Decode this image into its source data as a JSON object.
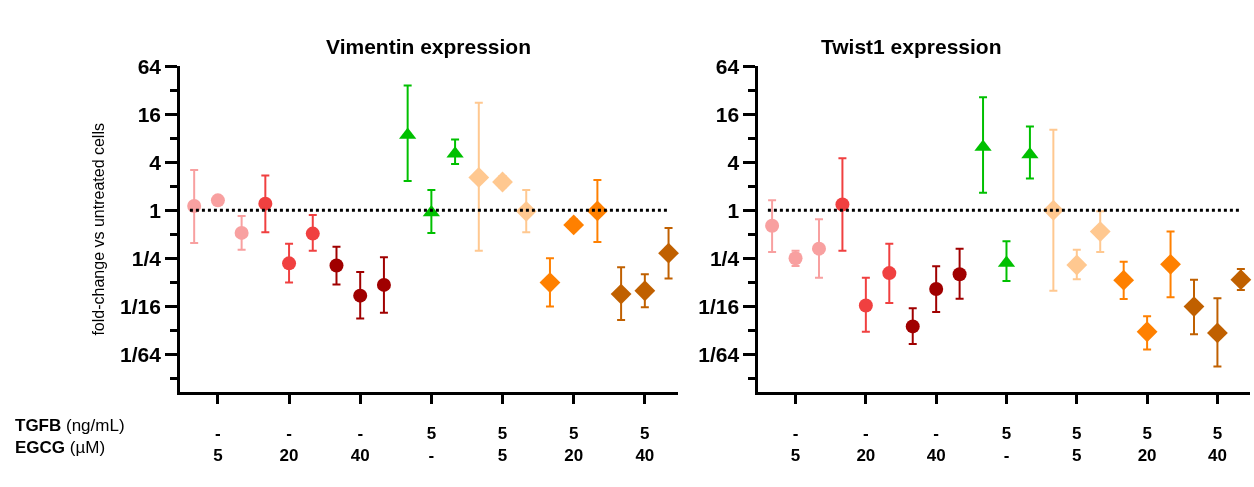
{
  "chart_data": [
    {
      "type": "scatter",
      "title": "Vimentin expression",
      "ylabel": "fold-change vs untreated cells",
      "log": "y",
      "categories": [
        null,
        "-\n5",
        null,
        null,
        "-\n20",
        null,
        null,
        "-\n40",
        null,
        null,
        "5\n-",
        null,
        null,
        "5\n5",
        null,
        null,
        "5\n20",
        null,
        null,
        "5\n40",
        null
      ],
      "ylim": [
        0.0052,
        64
      ],
      "yticks": [
        64,
        {
          "value": 32,
          "label": null
        },
        16,
        {
          "value": 8,
          "label": null
        },
        4,
        {
          "value": 2,
          "label": null
        },
        1,
        {
          "value": 0.5,
          "label": null
        },
        {
          "value": 0.25,
          "label": "1/4"
        },
        {
          "value": 0.125,
          "label": null
        },
        {
          "value": 0.0625,
          "label": "1/16"
        },
        {
          "value": 0.03125,
          "label": null
        },
        {
          "value": 0.015625,
          "label": "1/64"
        },
        {
          "value": 0.0078125,
          "label": null
        }
      ],
      "ref_lines": [
        {
          "axis": "y",
          "value": 1,
          "color": "#000000",
          "line_style": "dotted"
        }
      ],
      "annotations": [
        "TGFB (ng/mL)",
        "EGCG (µM)"
      ],
      "series": [
        {
          "color": "#f8a0a0",
          "marker": "circle",
          "values": [
            1.13,
            1.33,
            0.52,
            null,
            null,
            null,
            null,
            null,
            null,
            null,
            null,
            null,
            null,
            null,
            null,
            null,
            null,
            null,
            null,
            null,
            null
          ],
          "errors": [
            [
              0.39,
              3.2
            ],
            null,
            [
              0.32,
              0.85
            ],
            null,
            null,
            null,
            null,
            null,
            null,
            null,
            null,
            null,
            null,
            null,
            null,
            null,
            null,
            null,
            null,
            null,
            null
          ]
        },
        {
          "color": "#f04040",
          "marker": "circle",
          "values": [
            null,
            null,
            null,
            1.21,
            0.216,
            0.51,
            null,
            null,
            null,
            null,
            null,
            null,
            null,
            null,
            null,
            null,
            null,
            null,
            null,
            null,
            null
          ],
          "errors": [
            null,
            null,
            null,
            [
              0.53,
              2.73
            ],
            [
              0.124,
              0.38
            ],
            [
              0.31,
              0.87
            ],
            null,
            null,
            null,
            null,
            null,
            null,
            null,
            null,
            null,
            null,
            null,
            null,
            null,
            null,
            null
          ]
        },
        {
          "color": "#a00000",
          "marker": "circle",
          "values": [
            null,
            null,
            null,
            null,
            null,
            null,
            0.203,
            0.085,
            0.116,
            null,
            null,
            null,
            null,
            null,
            null,
            null,
            null,
            null,
            null,
            null,
            null
          ],
          "errors": [
            null,
            null,
            null,
            null,
            null,
            null,
            [
              0.117,
              0.35
            ],
            [
              0.044,
              0.168
            ],
            [
              0.052,
              0.257
            ],
            null,
            null,
            null,
            null,
            null,
            null,
            null,
            null,
            null,
            null,
            null,
            null
          ]
        },
        {
          "color": "#00c000",
          "marker": "triangle",
          "values": [
            null,
            null,
            null,
            null,
            null,
            null,
            null,
            null,
            null,
            8.8,
            0.94,
            5.1,
            null,
            null,
            null,
            null,
            null,
            null,
            null,
            null,
            null
          ],
          "errors": [
            null,
            null,
            null,
            null,
            null,
            null,
            null,
            null,
            null,
            [
              2.33,
              36.5
            ],
            [
              0.52,
              1.79
            ],
            [
              3.8,
              7.7
            ],
            null,
            null,
            null,
            null,
            null,
            null,
            null,
            null,
            null
          ]
        },
        {
          "color": "#ffc890",
          "marker": "diamond",
          "values": [
            null,
            null,
            null,
            null,
            null,
            null,
            null,
            null,
            null,
            null,
            null,
            null,
            2.58,
            2.26,
            0.97,
            null,
            null,
            null,
            null,
            null,
            null
          ],
          "errors": [
            null,
            null,
            null,
            null,
            null,
            null,
            null,
            null,
            null,
            null,
            null,
            null,
            [
              0.31,
              22.2
            ],
            [
              1.93,
              2.68
            ],
            [
              0.53,
              1.79
            ],
            null,
            null,
            null,
            null,
            null,
            null
          ]
        },
        {
          "color": "#ff8000",
          "marker": "diamond",
          "values": [
            null,
            null,
            null,
            null,
            null,
            null,
            null,
            null,
            null,
            null,
            null,
            null,
            null,
            null,
            null,
            0.124,
            0.655,
            0.98,
            null,
            null,
            null
          ],
          "errors": [
            null,
            null,
            null,
            null,
            null,
            null,
            null,
            null,
            null,
            null,
            null,
            null,
            null,
            null,
            null,
            [
              0.062,
              0.25
            ],
            [
              0.57,
              0.77
            ],
            [
              0.4,
              2.4
            ],
            null,
            null,
            null
          ]
        },
        {
          "color": "#c06000",
          "marker": "diamond",
          "values": [
            null,
            null,
            null,
            null,
            null,
            null,
            null,
            null,
            null,
            null,
            null,
            null,
            null,
            null,
            null,
            null,
            null,
            null,
            0.089,
            0.098,
            0.29
          ],
          "errors": [
            null,
            null,
            null,
            null,
            null,
            null,
            null,
            null,
            null,
            null,
            null,
            null,
            null,
            null,
            null,
            null,
            null,
            null,
            [
              0.042,
              0.193
            ],
            [
              0.061,
              0.158
            ],
            [
              0.139,
              0.6
            ]
          ]
        }
      ]
    },
    {
      "type": "scatter",
      "title": "Twist1 expression",
      "log": "y",
      "categories": [
        null,
        "-\n5",
        null,
        null,
        "-\n20",
        null,
        null,
        "-\n40",
        null,
        null,
        "5\n-",
        null,
        null,
        "5\n5",
        null,
        null,
        "5\n20",
        null,
        null,
        "5\n40",
        null
      ],
      "ylim": [
        0.0052,
        64
      ],
      "yticks": [
        64,
        {
          "value": 32,
          "label": null
        },
        16,
        {
          "value": 8,
          "label": null
        },
        4,
        {
          "value": 2,
          "label": null
        },
        1,
        {
          "value": 0.5,
          "label": null
        },
        {
          "value": 0.25,
          "label": "1/4"
        },
        {
          "value": 0.125,
          "label": null
        },
        {
          "value": 0.0625,
          "label": "1/16"
        },
        {
          "value": 0.03125,
          "label": null
        },
        {
          "value": 0.015625,
          "label": "1/64"
        },
        {
          "value": 0.0078125,
          "label": null
        }
      ],
      "ref_lines": [
        {
          "axis": "y",
          "value": 1,
          "color": "#000000",
          "line_style": "dotted"
        }
      ],
      "series": [
        {
          "color": "#f8a0a0",
          "marker": "circle",
          "values": [
            0.64,
            0.25,
            0.33,
            null,
            null,
            null,
            null,
            null,
            null,
            null,
            null,
            null,
            null,
            null,
            null,
            null,
            null,
            null,
            null,
            null,
            null
          ],
          "errors": [
            [
              0.3,
              1.33
            ],
            [
              0.2,
              0.31
            ],
            [
              0.143,
              0.77
            ],
            null,
            null,
            null,
            null,
            null,
            null,
            null,
            null,
            null,
            null,
            null,
            null,
            null,
            null,
            null,
            null,
            null,
            null
          ]
        },
        {
          "color": "#f04040",
          "marker": "circle",
          "values": [
            null,
            null,
            null,
            1.18,
            0.064,
            0.163,
            null,
            null,
            null,
            null,
            null,
            null,
            null,
            null,
            null,
            null,
            null,
            null,
            null,
            null,
            null
          ],
          "errors": [
            null,
            null,
            null,
            [
              0.31,
              4.5
            ],
            [
              0.03,
              0.143
            ],
            [
              0.069,
              0.38
            ],
            null,
            null,
            null,
            null,
            null,
            null,
            null,
            null,
            null,
            null,
            null,
            null,
            null,
            null,
            null
          ]
        },
        {
          "color": "#a00000",
          "marker": "circle",
          "values": [
            null,
            null,
            null,
            null,
            null,
            null,
            0.035,
            0.103,
            0.158,
            null,
            null,
            null,
            null,
            null,
            null,
            null,
            null,
            null,
            null,
            null,
            null
          ],
          "errors": [
            null,
            null,
            null,
            null,
            null,
            null,
            [
              0.021,
              0.059
            ],
            [
              0.053,
              0.199
            ],
            [
              0.078,
              0.33
            ],
            null,
            null,
            null,
            null,
            null,
            null,
            null,
            null,
            null,
            null,
            null,
            null
          ]
        },
        {
          "color": "#00c000",
          "marker": "triangle",
          "values": [
            null,
            null,
            null,
            null,
            null,
            null,
            null,
            null,
            null,
            6.2,
            0.218,
            5.0,
            null,
            null,
            null,
            null,
            null,
            null,
            null,
            null,
            null
          ],
          "errors": [
            null,
            null,
            null,
            null,
            null,
            null,
            null,
            null,
            null,
            [
              1.66,
              26
            ],
            [
              0.13,
              0.41
            ],
            [
              2.5,
              11.2
            ],
            null,
            null,
            null,
            null,
            null,
            null,
            null,
            null,
            null
          ]
        },
        {
          "color": "#ffc890",
          "marker": "diamond",
          "values": [
            null,
            null,
            null,
            null,
            null,
            null,
            null,
            null,
            null,
            null,
            null,
            null,
            1.0,
            0.206,
            0.54,
            null,
            null,
            null,
            null,
            null,
            null
          ],
          "errors": [
            null,
            null,
            null,
            null,
            null,
            null,
            null,
            null,
            null,
            null,
            null,
            null,
            [
              0.098,
              10.2
            ],
            [
              0.137,
              0.32
            ],
            [
              0.3,
              0.97
            ],
            null,
            null,
            null,
            null,
            null,
            null
          ]
        },
        {
          "color": "#ff8000",
          "marker": "diamond",
          "values": [
            null,
            null,
            null,
            null,
            null,
            null,
            null,
            null,
            null,
            null,
            null,
            null,
            null,
            null,
            null,
            0.133,
            0.03,
            0.21,
            null,
            null,
            null
          ],
          "errors": [
            null,
            null,
            null,
            null,
            null,
            null,
            null,
            null,
            null,
            null,
            null,
            null,
            null,
            null,
            null,
            [
              0.077,
              0.227
            ],
            [
              0.018,
              0.047
            ],
            [
              0.081,
              0.54
            ],
            null,
            null,
            null
          ]
        },
        {
          "color": "#c06000",
          "marker": "diamond",
          "values": [
            null,
            null,
            null,
            null,
            null,
            null,
            null,
            null,
            null,
            null,
            null,
            null,
            null,
            null,
            null,
            null,
            null,
            null,
            0.062,
            0.029,
            0.135
          ],
          "errors": [
            null,
            null,
            null,
            null,
            null,
            null,
            null,
            null,
            null,
            null,
            null,
            null,
            null,
            null,
            null,
            null,
            null,
            null,
            [
              0.028,
              0.135
            ],
            [
              0.011,
              0.079
            ],
            [
              0.1,
              0.184
            ]
          ]
        }
      ]
    }
  ]
}
